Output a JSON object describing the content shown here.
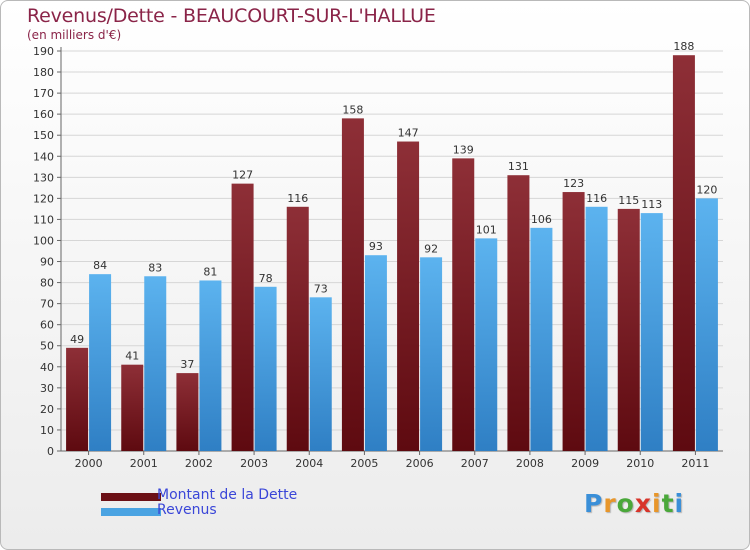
{
  "page": {
    "title": "Revenus/Dette - BEAUCOURT-SUR-L'HALLUE",
    "subtitle": "(en milliers d'€)"
  },
  "legend": {
    "items": [
      {
        "label": "Montant de la Dette",
        "color": "#6b0f15"
      },
      {
        "label": "Revenus",
        "color": "#4aa3e2"
      }
    ]
  },
  "logo": {
    "text": "Proxiti",
    "letter_colors": [
      "#3a8fd8",
      "#e8962a",
      "#4aa83a",
      "#d8342a",
      "#e8962a",
      "#4aa83a",
      "#3a8fd8"
    ]
  },
  "chart_data": {
    "type": "bar",
    "categories": [
      "2000",
      "2001",
      "2002",
      "2003",
      "2004",
      "2005",
      "2006",
      "2007",
      "2008",
      "2009",
      "2010",
      "2011"
    ],
    "series": [
      {
        "name": "Montant de la Dette",
        "values": [
          49,
          41,
          37,
          127,
          116,
          158,
          147,
          139,
          131,
          123,
          115,
          188
        ],
        "color": "#7b1a22"
      },
      {
        "name": "Revenus",
        "values": [
          84,
          83,
          81,
          78,
          73,
          93,
          92,
          101,
          106,
          116,
          113,
          120
        ],
        "color": "#4aa3e2"
      }
    ],
    "ylim": [
      0,
      190
    ],
    "yticks": [
      0,
      10,
      20,
      30,
      40,
      50,
      60,
      70,
      80,
      90,
      100,
      110,
      120,
      130,
      140,
      150,
      160,
      170,
      180,
      190
    ],
    "grid": true,
    "legend_position": "bottom-left"
  }
}
